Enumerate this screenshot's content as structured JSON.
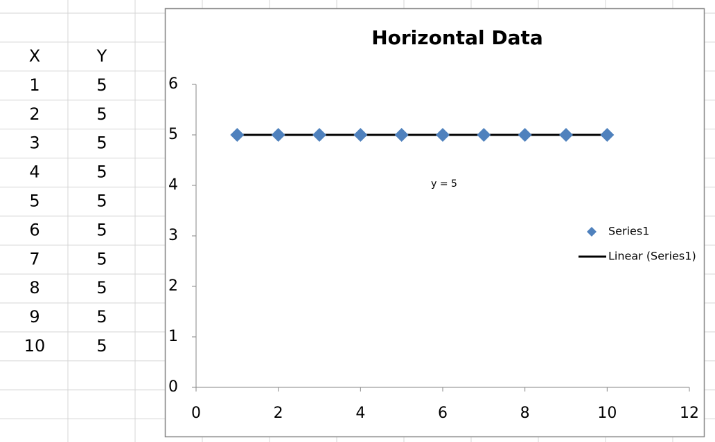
{
  "sheet": {
    "headers": [
      "X",
      "Y"
    ],
    "rows": [
      [
        1,
        5
      ],
      [
        2,
        5
      ],
      [
        3,
        5
      ],
      [
        4,
        5
      ],
      [
        5,
        5
      ],
      [
        6,
        5
      ],
      [
        7,
        5
      ],
      [
        8,
        5
      ],
      [
        9,
        5
      ],
      [
        10,
        5
      ]
    ]
  },
  "chart_data": {
    "type": "scatter",
    "title": "Horizontal Data",
    "annotation": "y = 5",
    "series": [
      {
        "name": "Series1",
        "color": "#4f81bd",
        "style": "markers",
        "x": [
          1,
          2,
          3,
          4,
          5,
          6,
          7,
          8,
          9,
          10
        ],
        "values": [
          5,
          5,
          5,
          5,
          5,
          5,
          5,
          5,
          5,
          5
        ]
      },
      {
        "name": "Linear (Series1)",
        "color": "#000000",
        "style": "line",
        "x": [
          1,
          10
        ],
        "values": [
          5,
          5
        ]
      }
    ],
    "xlim": [
      0,
      12
    ],
    "xticks": [
      0,
      2,
      4,
      6,
      8,
      10,
      12
    ],
    "ylim": [
      0,
      6
    ],
    "yticks": [
      0,
      1,
      2,
      3,
      4,
      5,
      6
    ],
    "grid": false
  }
}
